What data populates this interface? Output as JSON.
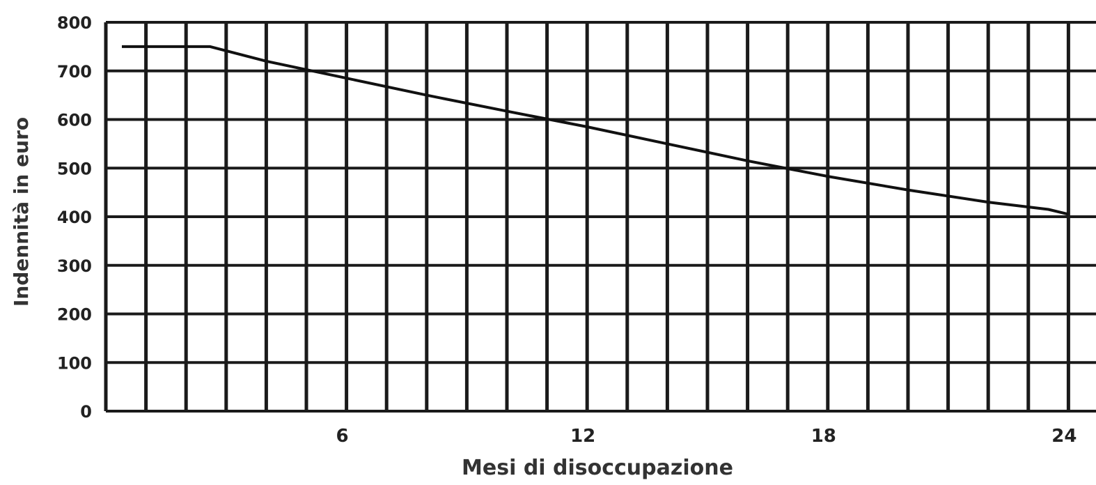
{
  "chart_data": {
    "type": "line",
    "title": "",
    "xlabel": "Mesi di disoccupazione",
    "ylabel": "Indennità in euro",
    "xlim": [
      0,
      24
    ],
    "ylim": [
      0,
      800
    ],
    "xticks": [
      6,
      12,
      18,
      24
    ],
    "yticks": [
      0,
      100,
      200,
      300,
      400,
      500,
      600,
      700,
      800
    ],
    "grid": true,
    "grid_x_step": 1,
    "grid_y_step": 100,
    "legend": "none",
    "line_color": "#111111",
    "grid_color": "#1a1a1a",
    "series": [
      {
        "x": [
          0.4,
          2.6,
          4.0,
          6.0,
          8.0,
          10.0,
          12.0,
          14.0,
          16.0,
          18.0,
          20.0,
          22.0,
          23.5,
          24.0
        ],
        "y": [
          750,
          750,
          720,
          685,
          650,
          617,
          585,
          550,
          515,
          483,
          455,
          430,
          415,
          405
        ]
      }
    ]
  }
}
